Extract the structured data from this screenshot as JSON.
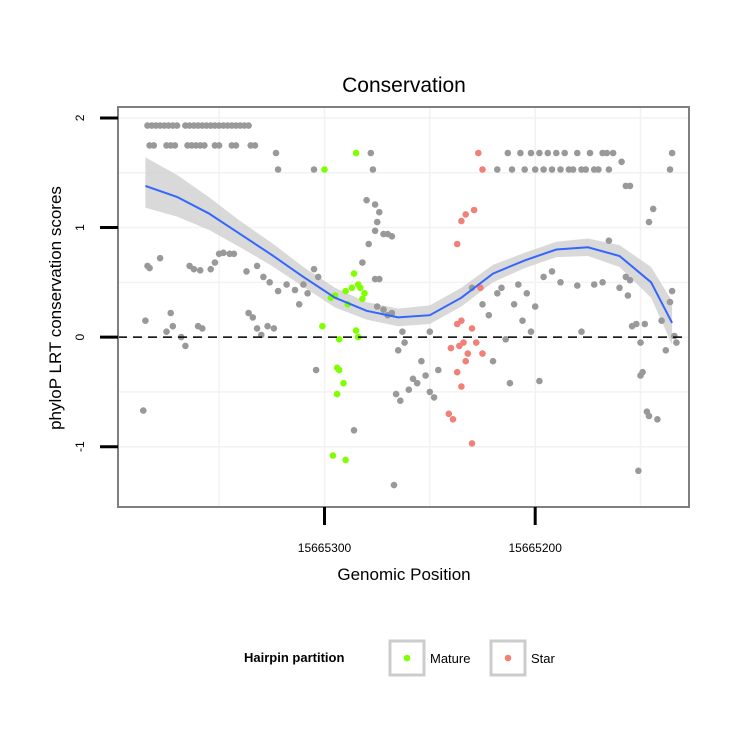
{
  "chart_data": {
    "type": "scatter",
    "title": "Conservation",
    "xlabel": "Genomic Position",
    "ylabel": "phyloP LRT conservation scores",
    "x_reversed": true,
    "xlim": [
      15665398,
      15665127
    ],
    "ylim": [
      -1.55,
      2.1
    ],
    "x_ticks": [
      {
        "value": 15665300,
        "label": "15665300"
      },
      {
        "value": 15665200,
        "label": "15665200"
      }
    ],
    "y_ticks": [
      {
        "value": 2,
        "label": "2"
      },
      {
        "value": 1,
        "label": "1"
      },
      {
        "value": 0,
        "label": "0"
      },
      {
        "value": -1,
        "label": "-1"
      }
    ],
    "reference_line": {
      "y": 0,
      "style": "dashed"
    },
    "colors": {
      "other": "#999999",
      "Mature": "#7fff00",
      "Star": "#f08078",
      "smooth_line": "#3366ff",
      "smooth_band": "#cccccc",
      "panel_border": "#7f7f7f",
      "grid": "#f2f2f2"
    },
    "legend": {
      "title": "Hairpin partition",
      "position": "bottom",
      "entries": [
        "Mature",
        "Star"
      ]
    },
    "smooth": {
      "method": "loess",
      "x": [
        15665385,
        15665370,
        15665355,
        15665340,
        15665325,
        15665310,
        15665295,
        15665280,
        15665265,
        15665250,
        15665235,
        15665220,
        15665205,
        15665190,
        15665175,
        15665160,
        15665145,
        15665135
      ],
      "y": [
        1.38,
        1.28,
        1.13,
        0.94,
        0.75,
        0.55,
        0.36,
        0.24,
        0.18,
        0.2,
        0.36,
        0.58,
        0.7,
        0.8,
        0.82,
        0.74,
        0.5,
        0.13
      ],
      "lower": [
        1.18,
        1.1,
        0.98,
        0.82,
        0.65,
        0.46,
        0.27,
        0.16,
        0.1,
        0.12,
        0.28,
        0.5,
        0.63,
        0.73,
        0.74,
        0.64,
        0.36,
        -0.07
      ],
      "upper": [
        1.64,
        1.48,
        1.28,
        1.06,
        0.86,
        0.64,
        0.45,
        0.32,
        0.26,
        0.29,
        0.45,
        0.66,
        0.77,
        0.87,
        0.9,
        0.84,
        0.64,
        0.33
      ]
    },
    "series": [
      {
        "group": "other",
        "points": [
          [
            15665384,
            1.93
          ],
          [
            15665382,
            1.93
          ],
          [
            15665380,
            1.93
          ],
          [
            15665378,
            1.93
          ],
          [
            15665376,
            1.93
          ],
          [
            15665374,
            1.93
          ],
          [
            15665372,
            1.93
          ],
          [
            15665370,
            1.93
          ],
          [
            15665366,
            1.93
          ],
          [
            15665364,
            1.93
          ],
          [
            15665362,
            1.93
          ],
          [
            15665360,
            1.93
          ],
          [
            15665358,
            1.93
          ],
          [
            15665356,
            1.93
          ],
          [
            15665354,
            1.93
          ],
          [
            15665352,
            1.93
          ],
          [
            15665350,
            1.93
          ],
          [
            15665348,
            1.93
          ],
          [
            15665346,
            1.93
          ],
          [
            15665344,
            1.93
          ],
          [
            15665342,
            1.93
          ],
          [
            15665340,
            1.93
          ],
          [
            15665338,
            1.93
          ],
          [
            15665336,
            1.93
          ],
          [
            15665383,
            1.75
          ],
          [
            15665381,
            1.75
          ],
          [
            15665375,
            1.75
          ],
          [
            15665373,
            1.75
          ],
          [
            15665371,
            1.75
          ],
          [
            15665365,
            1.75
          ],
          [
            15665363,
            1.75
          ],
          [
            15665361,
            1.75
          ],
          [
            15665359,
            1.75
          ],
          [
            15665357,
            1.75
          ],
          [
            15665352,
            1.75
          ],
          [
            15665350,
            1.75
          ],
          [
            15665344,
            1.75
          ],
          [
            15665342,
            1.75
          ],
          [
            15665335,
            1.75
          ],
          [
            15665333,
            1.75
          ],
          [
            15665323,
            1.68
          ],
          [
            15665322,
            1.53
          ],
          [
            15665305,
            1.53
          ],
          [
            15665278,
            1.68
          ],
          [
            15665277,
            1.53
          ],
          [
            15665218,
            1.53
          ],
          [
            15665213,
            1.68
          ],
          [
            15665211,
            1.53
          ],
          [
            15665207,
            1.68
          ],
          [
            15665205,
            1.53
          ],
          [
            15665202,
            1.68
          ],
          [
            15665200,
            1.53
          ],
          [
            15665198,
            1.68
          ],
          [
            15665196,
            1.53
          ],
          [
            15665194,
            1.68
          ],
          [
            15665192,
            1.53
          ],
          [
            15665190,
            1.68
          ],
          [
            15665188,
            1.53
          ],
          [
            15665186,
            1.68
          ],
          [
            15665184,
            1.53
          ],
          [
            15665182,
            1.53
          ],
          [
            15665180,
            1.68
          ],
          [
            15665178,
            1.53
          ],
          [
            15665176,
            1.53
          ],
          [
            15665174,
            1.68
          ],
          [
            15665172,
            1.53
          ],
          [
            15665170,
            1.53
          ],
          [
            15665168,
            1.68
          ],
          [
            15665166,
            1.68
          ],
          [
            15665165,
            1.53
          ],
          [
            15665163,
            1.68
          ],
          [
            15665159,
            1.6
          ],
          [
            15665157,
            1.38
          ],
          [
            15665155,
            1.38
          ],
          [
            15665135,
            1.68
          ],
          [
            15665136,
            1.53
          ],
          [
            15665280,
            1.25
          ],
          [
            15665276,
            1.21
          ],
          [
            15665274,
            1.14
          ],
          [
            15665275,
            1.05
          ],
          [
            15665276,
            0.97
          ],
          [
            15665272,
            0.94
          ],
          [
            15665270,
            0.94
          ],
          [
            15665268,
            0.92
          ],
          [
            15665279,
            0.85
          ],
          [
            15665282,
            0.68
          ],
          [
            15665276,
            0.53
          ],
          [
            15665274,
            0.53
          ],
          [
            15665384,
            0.65
          ],
          [
            15665383,
            0.63
          ],
          [
            15665378,
            0.72
          ],
          [
            15665372,
            0.1
          ],
          [
            15665364,
            0.65
          ],
          [
            15665362,
            0.62
          ],
          [
            15665359,
            0.61
          ],
          [
            15665354,
            0.62
          ],
          [
            15665352,
            0.68
          ],
          [
            15665350,
            0.76
          ],
          [
            15665348,
            0.77
          ],
          [
            15665345,
            0.76
          ],
          [
            15665343,
            0.76
          ],
          [
            15665337,
            0.6
          ],
          [
            15665332,
            0.65
          ],
          [
            15665329,
            0.55
          ],
          [
            15665326,
            0.5
          ],
          [
            15665322,
            0.42
          ],
          [
            15665318,
            0.48
          ],
          [
            15665314,
            0.43
          ],
          [
            15665312,
            0.3
          ],
          [
            15665310,
            0.48
          ],
          [
            15665308,
            0.4
          ],
          [
            15665305,
            0.62
          ],
          [
            15665303,
            0.55
          ],
          [
            15665385,
            0.15
          ],
          [
            15665375,
            0.05
          ],
          [
            15665373,
            0.22
          ],
          [
            15665368,
            0.0
          ],
          [
            15665366,
            -0.08
          ],
          [
            15665360,
            0.1
          ],
          [
            15665358,
            0.08
          ],
          [
            15665336,
            0.22
          ],
          [
            15665334,
            0.18
          ],
          [
            15665332,
            0.08
          ],
          [
            15665330,
            0.02
          ],
          [
            15665327,
            0.1
          ],
          [
            15665324,
            0.08
          ],
          [
            15665386,
            -0.67
          ],
          [
            15665304,
            -0.3
          ],
          [
            15665275,
            0.28
          ],
          [
            15665272,
            0.25
          ],
          [
            15665270,
            0.2
          ],
          [
            15665268,
            0.22
          ],
          [
            15665266,
            -0.52
          ],
          [
            15665264,
            -0.58
          ],
          [
            15665262,
            -0.05
          ],
          [
            15665260,
            -0.48
          ],
          [
            15665258,
            -0.38
          ],
          [
            15665256,
            -0.42
          ],
          [
            15665254,
            -0.22
          ],
          [
            15665252,
            -0.35
          ],
          [
            15665250,
            -0.5
          ],
          [
            15665248,
            -0.55
          ],
          [
            15665246,
            -0.3
          ],
          [
            15665265,
            -0.12
          ],
          [
            15665263,
            0.05
          ],
          [
            15665286,
            -0.85
          ],
          [
            15665267,
            -1.35
          ],
          [
            15665250,
            0.05
          ],
          [
            15665230,
            0.45
          ],
          [
            15665225,
            0.3
          ],
          [
            15665222,
            0.2
          ],
          [
            15665220,
            -0.22
          ],
          [
            15665218,
            0.4
          ],
          [
            15665216,
            0.45
          ],
          [
            15665214,
            -0.02
          ],
          [
            15665212,
            -0.42
          ],
          [
            15665210,
            0.3
          ],
          [
            15665208,
            0.48
          ],
          [
            15665206,
            0.15
          ],
          [
            15665204,
            0.4
          ],
          [
            15665202,
            0.05
          ],
          [
            15665200,
            0.28
          ],
          [
            15665198,
            -0.4
          ],
          [
            15665196,
            0.55
          ],
          [
            15665192,
            0.6
          ],
          [
            15665188,
            0.5
          ],
          [
            15665180,
            0.47
          ],
          [
            15665178,
            0.05
          ],
          [
            15665172,
            0.48
          ],
          [
            15665168,
            0.5
          ],
          [
            15665165,
            0.88
          ],
          [
            15665160,
            0.45
          ],
          [
            15665156,
            0.38
          ],
          [
            15665154,
            0.1
          ],
          [
            15665152,
            0.12
          ],
          [
            15665150,
            -0.05
          ],
          [
            15665148,
            0.12
          ],
          [
            15665146,
            -0.72
          ],
          [
            15665142,
            -0.75
          ],
          [
            15665140,
            0.15
          ],
          [
            15665138,
            -0.12
          ],
          [
            15665136,
            0.32
          ],
          [
            15665135,
            0.42
          ],
          [
            15665134,
            0.01
          ],
          [
            15665133,
            -0.05
          ],
          [
            15665144,
            1.17
          ],
          [
            15665146,
            1.05
          ],
          [
            15665147,
            -0.68
          ],
          [
            15665151,
            -1.22
          ],
          [
            15665157,
            0.55
          ],
          [
            15665155,
            0.52
          ],
          [
            15665150,
            -0.35
          ],
          [
            15665149,
            -0.32
          ]
        ]
      },
      {
        "group": "Mature",
        "points": [
          [
            15665300,
            1.53
          ],
          [
            15665285,
            1.68
          ],
          [
            15665286,
            0.58
          ],
          [
            15665284,
            0.48
          ],
          [
            15665283,
            0.45
          ],
          [
            15665287,
            0.45
          ],
          [
            15665290,
            0.42
          ],
          [
            15665295,
            0.38
          ],
          [
            15665297,
            0.36
          ],
          [
            15665281,
            0.4
          ],
          [
            15665282,
            0.35
          ],
          [
            15665289,
            0.3
          ],
          [
            15665301,
            0.1
          ],
          [
            15665285,
            0.06
          ],
          [
            15665284,
            0.0
          ],
          [
            15665293,
            -0.02
          ],
          [
            15665293,
            -0.3
          ],
          [
            15665294,
            -0.28
          ],
          [
            15665291,
            -0.42
          ],
          [
            15665294,
            -0.52
          ],
          [
            15665296,
            -1.08
          ],
          [
            15665290,
            -1.12
          ]
        ]
      },
      {
        "group": "Star",
        "points": [
          [
            15665227,
            1.68
          ],
          [
            15665225,
            1.53
          ],
          [
            15665229,
            1.16
          ],
          [
            15665233,
            1.12
          ],
          [
            15665235,
            1.06
          ],
          [
            15665237,
            0.85
          ],
          [
            15665226,
            0.45
          ],
          [
            15665235,
            0.15
          ],
          [
            15665237,
            0.12
          ],
          [
            15665230,
            0.08
          ],
          [
            15665228,
            -0.05
          ],
          [
            15665234,
            -0.05
          ],
          [
            15665236,
            -0.08
          ],
          [
            15665240,
            -0.1
          ],
          [
            15665232,
            -0.15
          ],
          [
            15665225,
            -0.15
          ],
          [
            15665233,
            -0.22
          ],
          [
            15665237,
            -0.32
          ],
          [
            15665235,
            -0.45
          ],
          [
            15665241,
            -0.7
          ],
          [
            15665239,
            -0.75
          ],
          [
            15665230,
            -0.97
          ]
        ]
      }
    ]
  }
}
